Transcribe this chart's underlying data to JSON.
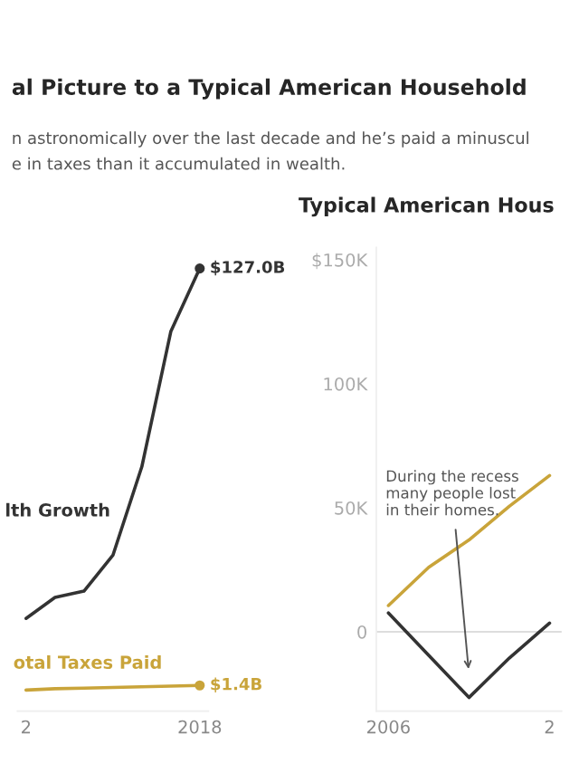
{
  "chart_data": [
    {
      "type": "line",
      "title": "al Picture to a Typical American Household",
      "subtitle": "n astronomically over the last decade and he’s paid a minuscul\ne in taxes than it accumulated in wealth.",
      "categories": [
        "2",
        null,
        null,
        null,
        null,
        null,
        "2018"
      ],
      "tick_labels": "x",
      "series": [
        {
          "name": "lth Growth",
          "color": "#333333",
          "values": [
            21.6,
            27.9,
            29.8,
            40.6,
            67.3,
            108.0,
            127.0
          ],
          "value_labels": [
            null,
            null,
            null,
            null,
            null,
            null,
            "$127.0B"
          ]
        },
        {
          "name": "otal Taxes Paid",
          "color": "#c9a43a",
          "values": [
            0.0,
            0.4,
            0.6,
            0.8,
            1.0,
            1.2,
            1.4
          ],
          "value_labels": [
            null,
            null,
            null,
            null,
            null,
            null,
            "$1.4B"
          ]
        }
      ]
    },
    {
      "type": "line",
      "title": "Typical American Hous",
      "categories": [
        "2006",
        null,
        null,
        null,
        "2"
      ],
      "ylim": [
        -32000,
        155000
      ],
      "yticks": [
        {
          "value": 0,
          "label": "0"
        },
        {
          "value": 50000,
          "label": "50K"
        },
        {
          "value": 100000,
          "label": "100K"
        },
        {
          "value": 150000,
          "label": "$150K"
        }
      ],
      "ref_lines": [
        {
          "axis": "y",
          "value": 0,
          "color": "#dddddd"
        }
      ],
      "annotations": [
        "During the recess\nmany people lost\nin their homes."
      ],
      "series": [
        {
          "color": "#c9a43a",
          "values": [
            10600,
            26000,
            37000,
            50600,
            63000
          ]
        },
        {
          "color": "#333333",
          "values": [
            7600,
            -9500,
            -26500,
            -10600,
            3500
          ]
        }
      ]
    }
  ]
}
